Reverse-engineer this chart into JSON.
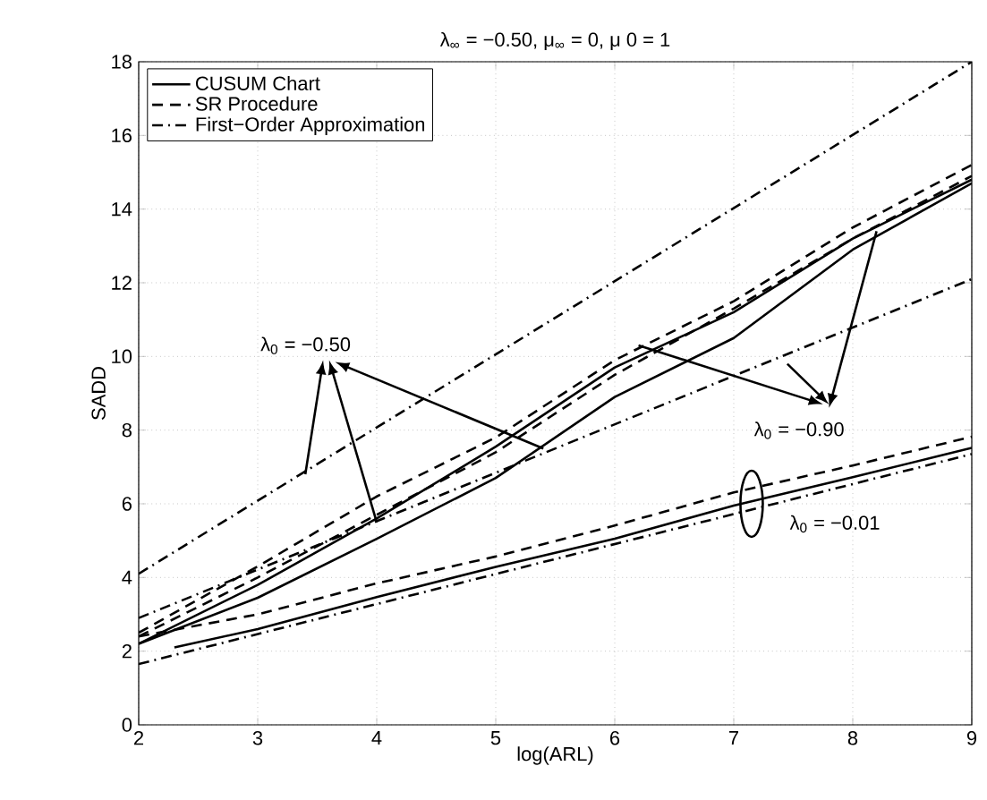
{
  "chart_data": {
    "type": "line",
    "title": "λ$_{∞}$ = −0.50, μ$_{∞}$ = 0, μ 0 = 1",
    "xlabel": "log(ARL)",
    "ylabel": "SADD",
    "xlim": [
      2,
      9
    ],
    "ylim": [
      0,
      18
    ],
    "xticks": [
      2,
      3,
      4,
      5,
      6,
      7,
      8,
      9
    ],
    "yticks": [
      0,
      2,
      4,
      6,
      8,
      10,
      12,
      14,
      16,
      18
    ],
    "grid": true,
    "legend": "top left",
    "series": [
      {
        "name": "CUSUM Chart",
        "color": "#000000",
        "line_style": "solid",
        "x": [
          2,
          3,
          4,
          5,
          6,
          7,
          8,
          9
        ],
        "values": [
          2.2,
          3.8,
          5.6,
          7.55,
          9.7,
          11.2,
          13.2,
          14.8
        ]
      },
      {
        "name": "SR Procedure",
        "color": "#000000",
        "line_style": "dashed",
        "x": [
          2,
          3,
          4,
          5,
          6,
          7,
          8,
          9
        ],
        "values": [
          2.5,
          4.3,
          6.2,
          7.8,
          9.9,
          11.5,
          13.5,
          15.2
        ]
      },
      {
        "name": "First−Order Approximation",
        "color": "#000000",
        "line_style": "dashdot",
        "x": [
          2,
          9
        ],
        "values": [
          4.1,
          18
        ]
      },
      {
        "color": "#000000",
        "line_style": "solid",
        "x": [
          2,
          3,
          4,
          5,
          6,
          7,
          8,
          9
        ],
        "values": [
          2.2,
          3.45,
          5.05,
          6.7,
          8.9,
          10.5,
          12.9,
          14.7
        ]
      },
      {
        "color": "#000000",
        "line_style": "dashed",
        "x": [
          2,
          3,
          4,
          5,
          6,
          7,
          8,
          9
        ],
        "values": [
          2.4,
          4.0,
          5.7,
          7.4,
          9.5,
          11.3,
          13.2,
          14.9
        ]
      },
      {
        "color": "#000000",
        "line_style": "dashdot",
        "x": [
          2,
          9
        ],
        "values": [
          2.9,
          12.1
        ]
      },
      {
        "color": "#000000",
        "line_style": "solid",
        "x": [
          2.3,
          3,
          4,
          5,
          6,
          7,
          8,
          9
        ],
        "values": [
          2.1,
          2.6,
          3.47,
          4.29,
          5.05,
          5.95,
          6.72,
          7.52
        ]
      },
      {
        "color": "#000000",
        "line_style": "dashed",
        "x": [
          2,
          3,
          4,
          5,
          6,
          7,
          8,
          9
        ],
        "values": [
          2.4,
          3.0,
          3.84,
          4.57,
          5.41,
          6.31,
          7.04,
          7.82
        ]
      },
      {
        "color": "#000000",
        "line_style": "dashdot",
        "x": [
          2,
          9
        ],
        "values": [
          1.65,
          7.35
        ]
      }
    ],
    "annotations": [
      "λ$_{0}$ = −0.50",
      "λ$_{0}$ = −0.90",
      "λ$_{0}$ = −0.01"
    ]
  }
}
